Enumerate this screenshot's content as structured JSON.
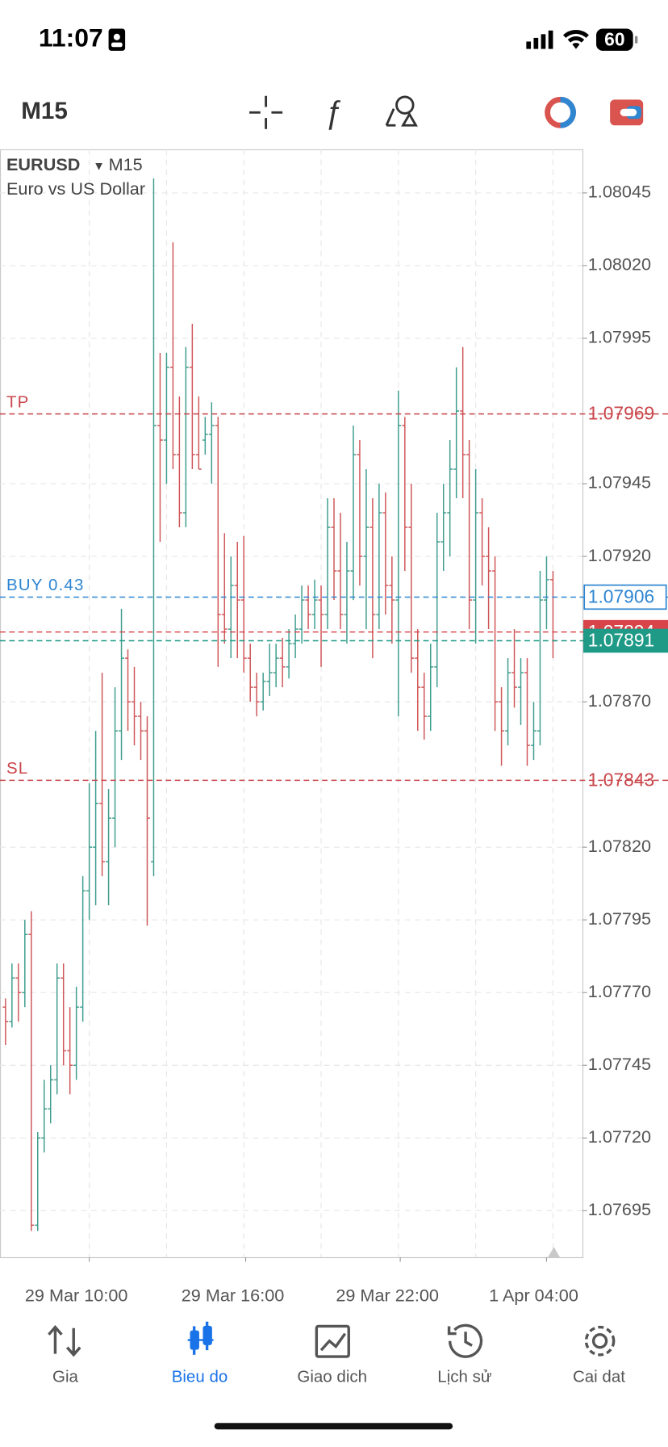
{
  "status_bar": {
    "time": "11:07",
    "battery": "60"
  },
  "toolbar": {
    "timeframe": "M15"
  },
  "chart": {
    "type": "ohlc",
    "symbol": "EURUSD",
    "timeframe": "M15",
    "description": "Euro vs US Dollar",
    "up_color": "#3f9d8e",
    "down_color": "#cf5658",
    "ylim": [
      1.07679,
      1.0806
    ],
    "yticks": [
      1.08045,
      {
        "value": 1.0802,
        "label": "1.08020"
      },
      1.07995,
      1.07945,
      {
        "value": 1.0792,
        "label": "1.07920"
      },
      {
        "value": 1.0787,
        "label": "1.07870"
      },
      {
        "value": 1.0782,
        "label": "1.07820"
      },
      1.07795,
      {
        "value": 1.0777,
        "label": "1.07770"
      },
      1.07745,
      {
        "value": 1.0772,
        "label": "1.07720"
      },
      1.07695
    ],
    "x_labels": [
      "29 Mar 10:00",
      "29 Mar 16:00",
      "29 Mar 22:00",
      "1 Apr 04:00"
    ],
    "levels": [
      {
        "name": "TP",
        "value": 1.07969,
        "color": "#c9464b",
        "style": "text"
      },
      {
        "name": "BUY 0.43",
        "value": 1.07906,
        "color": "#2f86d1",
        "style": "outline"
      },
      {
        "value": 1.07894,
        "color": "#d9444a",
        "style": "filled"
      },
      {
        "value": 1.07891,
        "color": "#1f9a86",
        "style": "filled"
      },
      {
        "name": "SL",
        "value": 1.07843,
        "color": "#c9464b",
        "style": "text"
      }
    ],
    "ohlc": [
      [
        1.07765,
        1.07768,
        1.07752,
        1.0776
      ],
      [
        1.0776,
        1.0778,
        1.07758,
        1.07775
      ],
      [
        1.07775,
        1.0778,
        1.0776,
        1.0777
      ],
      [
        1.0777,
        1.07795,
        1.07765,
        1.0779
      ],
      [
        1.0779,
        1.07798,
        1.07688,
        1.0769
      ],
      [
        1.0769,
        1.07722,
        1.07688,
        1.0772
      ],
      [
        1.0772,
        1.0774,
        1.07715,
        1.0773
      ],
      [
        1.0773,
        1.07745,
        1.07725,
        1.0774
      ],
      [
        1.0774,
        1.0778,
        1.07735,
        1.07775
      ],
      [
        1.07775,
        1.0778,
        1.07745,
        1.0775
      ],
      [
        1.0775,
        1.07765,
        1.07735,
        1.07745
      ],
      [
        1.07745,
        1.07772,
        1.0774,
        1.07765
      ],
      [
        1.07765,
        1.0781,
        1.0776,
        1.07805
      ],
      [
        1.07805,
        1.07842,
        1.07795,
        1.0782
      ],
      [
        1.0782,
        1.0786,
        1.078,
        1.07835
      ],
      [
        1.07835,
        1.0788,
        1.0781,
        1.07815
      ],
      [
        1.07815,
        1.0784,
        1.078,
        1.0783
      ],
      [
        1.0783,
        1.07875,
        1.0782,
        1.0786
      ],
      [
        1.0786,
        1.07902,
        1.0785,
        1.07885
      ],
      [
        1.07885,
        1.07888,
        1.0786,
        1.0787
      ],
      [
        1.0787,
        1.07882,
        1.07855,
        1.07865
      ],
      [
        1.07865,
        1.0787,
        1.0785,
        1.0786
      ],
      [
        1.0786,
        1.07865,
        1.07793,
        1.0783
      ],
      [
        1.07815,
        1.0805,
        1.0781,
        1.07965
      ],
      [
        1.07965,
        1.0799,
        1.07925,
        1.0796
      ],
      [
        1.0796,
        1.0799,
        1.07945,
        1.07985
      ],
      [
        1.07985,
        1.08028,
        1.0795,
        1.07955
      ],
      [
        1.07955,
        1.07975,
        1.0793,
        1.07935
      ],
      [
        1.07935,
        1.07992,
        1.0793,
        1.07985
      ],
      [
        1.07985,
        1.08,
        1.0795,
        1.07955
      ],
      [
        1.07955,
        1.07975,
        1.0795,
        1.0795
      ],
      [
        1.0796,
        1.07968,
        1.07955,
        1.07962
      ],
      [
        1.07962,
        1.07973,
        1.07945,
        1.07965
      ],
      [
        1.07965,
        1.07968,
        1.07882,
        1.079
      ],
      [
        1.079,
        1.07928,
        1.0789,
        1.07895
      ],
      [
        1.07895,
        1.0792,
        1.07885,
        1.0791
      ],
      [
        1.0791,
        1.07925,
        1.07885,
        1.07905
      ],
      [
        1.07905,
        1.07927,
        1.0788,
        1.07885
      ],
      [
        1.07885,
        1.0789,
        1.0787,
        1.07875
      ],
      [
        1.07875,
        1.0788,
        1.07865,
        1.0787
      ],
      [
        1.0787,
        1.0788,
        1.07867,
        1.07877
      ],
      [
        1.07877,
        1.0789,
        1.07872,
        1.0788
      ],
      [
        1.0788,
        1.0789,
        1.07875,
        1.07885
      ],
      [
        1.07885,
        1.07892,
        1.07875,
        1.07882
      ],
      [
        1.07882,
        1.07895,
        1.07878,
        1.0789
      ],
      [
        1.0789,
        1.079,
        1.07885,
        1.07895
      ],
      [
        1.07895,
        1.0791,
        1.0789,
        1.07905
      ],
      [
        1.07905,
        1.0791,
        1.07895,
        1.079
      ],
      [
        1.079,
        1.07912,
        1.07895,
        1.07905
      ],
      [
        1.07905,
        1.0791,
        1.07882,
        1.079
      ],
      [
        1.079,
        1.0794,
        1.07895,
        1.0793
      ],
      [
        1.0793,
        1.0794,
        1.07905,
        1.07915
      ],
      [
        1.07915,
        1.07935,
        1.07895,
        1.079
      ],
      [
        1.079,
        1.07925,
        1.0789,
        1.07915
      ],
      [
        1.07915,
        1.07965,
        1.07905,
        1.07955
      ],
      [
        1.07955,
        1.0796,
        1.0791,
        1.0792
      ],
      [
        1.0792,
        1.0795,
        1.07895,
        1.0793
      ],
      [
        1.0793,
        1.0794,
        1.07885,
        1.079
      ],
      [
        1.079,
        1.07945,
        1.07895,
        1.07935
      ],
      [
        1.07935,
        1.07942,
        1.079,
        1.0791
      ],
      [
        1.0791,
        1.0792,
        1.0789,
        1.07905
      ],
      [
        1.07905,
        1.07977,
        1.07865,
        1.07965
      ],
      [
        1.07965,
        1.07968,
        1.07915,
        1.0793
      ],
      [
        1.0793,
        1.07945,
        1.0788,
        1.07885
      ],
      [
        1.07885,
        1.07895,
        1.0786,
        1.07875
      ],
      [
        1.07875,
        1.0788,
        1.07857,
        1.07865
      ],
      [
        1.07865,
        1.0789,
        1.0786,
        1.07882
      ],
      [
        1.07882,
        1.07935,
        1.07875,
        1.07925
      ],
      [
        1.07925,
        1.07945,
        1.07915,
        1.07935
      ],
      [
        1.07935,
        1.0796,
        1.0792,
        1.0795
      ],
      [
        1.0795,
        1.07985,
        1.0794,
        1.0797
      ],
      [
        1.0797,
        1.07992,
        1.0794,
        1.07955
      ],
      [
        1.07955,
        1.0796,
        1.07895,
        1.07905
      ],
      [
        1.07905,
        1.0795,
        1.0789,
        1.07935
      ],
      [
        1.07935,
        1.0794,
        1.0791,
        1.0792
      ],
      [
        1.0792,
        1.0793,
        1.07895,
        1.07915
      ],
      [
        1.07915,
        1.0792,
        1.0786,
        1.0787
      ],
      [
        1.0787,
        1.07875,
        1.07848,
        1.0786
      ],
      [
        1.0786,
        1.07885,
        1.07855,
        1.0788
      ],
      [
        1.0788,
        1.07895,
        1.07868,
        1.07875
      ],
      [
        1.07875,
        1.07885,
        1.07862,
        1.0788
      ],
      [
        1.0788,
        1.07885,
        1.07848,
        1.07855
      ],
      [
        1.07855,
        1.0787,
        1.0785,
        1.0786
      ],
      [
        1.0786,
        1.07915,
        1.07855,
        1.07905
      ],
      [
        1.07905,
        1.0792,
        1.07895,
        1.07912
      ],
      [
        1.07912,
        1.07915,
        1.07885,
        1.07891
      ]
    ]
  },
  "nav": {
    "items": [
      {
        "label": "Gia"
      },
      {
        "label": "Bieu do",
        "active": true
      },
      {
        "label": "Giao dich"
      },
      {
        "label": "Lịch sử"
      },
      {
        "label": "Cai dat"
      }
    ]
  }
}
